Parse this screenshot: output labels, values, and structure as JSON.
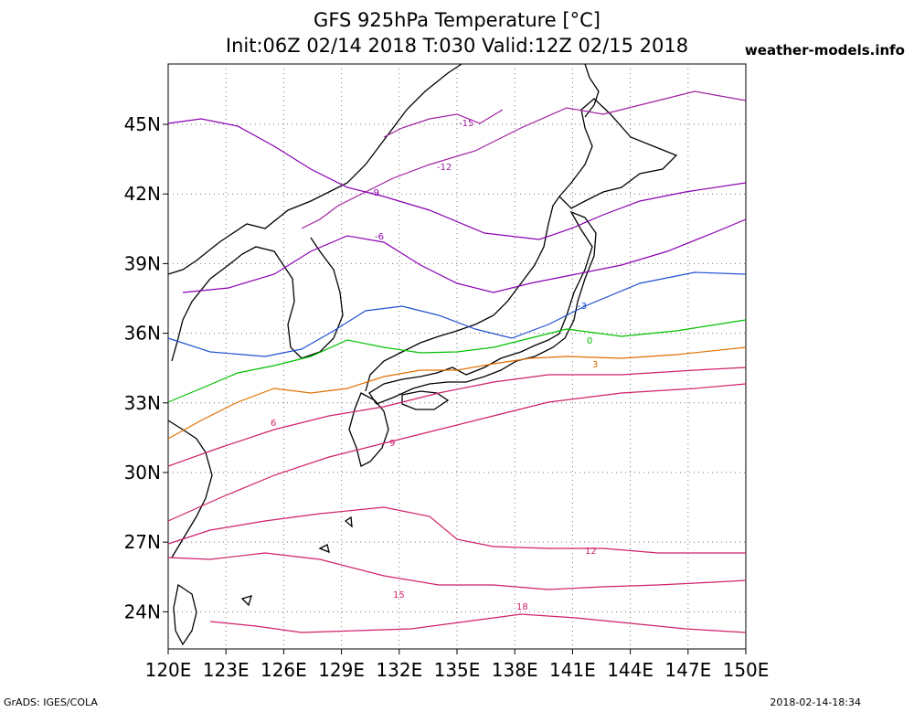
{
  "title_line1": "GFS 925hPa Temperature [°C]",
  "title_line2": "Init:06Z 02/14 2018 T:030 Valid:12Z 02/15 2018",
  "site": "weather-models.info",
  "footer_left": "GrADS: IGES/COLA",
  "footer_right": "2018-02-14-18:34",
  "map": {
    "lon_range": [
      120,
      150
    ],
    "lat_range": [
      22.4,
      47.6
    ],
    "grid_dotted": true,
    "lon_ticks": [
      "120E",
      "123E",
      "126E",
      "129E",
      "132E",
      "135E",
      "138E",
      "141E",
      "144E",
      "147E",
      "150E"
    ],
    "lat_ticks": [
      "24N",
      "27N",
      "30N",
      "33N",
      "36N",
      "39N",
      "42N",
      "45N"
    ]
  },
  "contour_colors": {
    "-15": "#a020a0",
    "-12": "#a020a0",
    "-9": "#8a00b0",
    "-6": "#8a00b0",
    "-3": "#2050d0",
    "0": "#00c000",
    "3": "#e07000",
    "6": "#d0206a",
    "9": "#d0206a",
    "12": "#d0206a",
    "15": "#d0206a",
    "18": "#d0206a"
  },
  "contour_labels": [
    "-15",
    "-12",
    "-9",
    "-6",
    "-3",
    "0",
    "3",
    "6",
    "9",
    "12",
    "15",
    "18"
  ]
}
